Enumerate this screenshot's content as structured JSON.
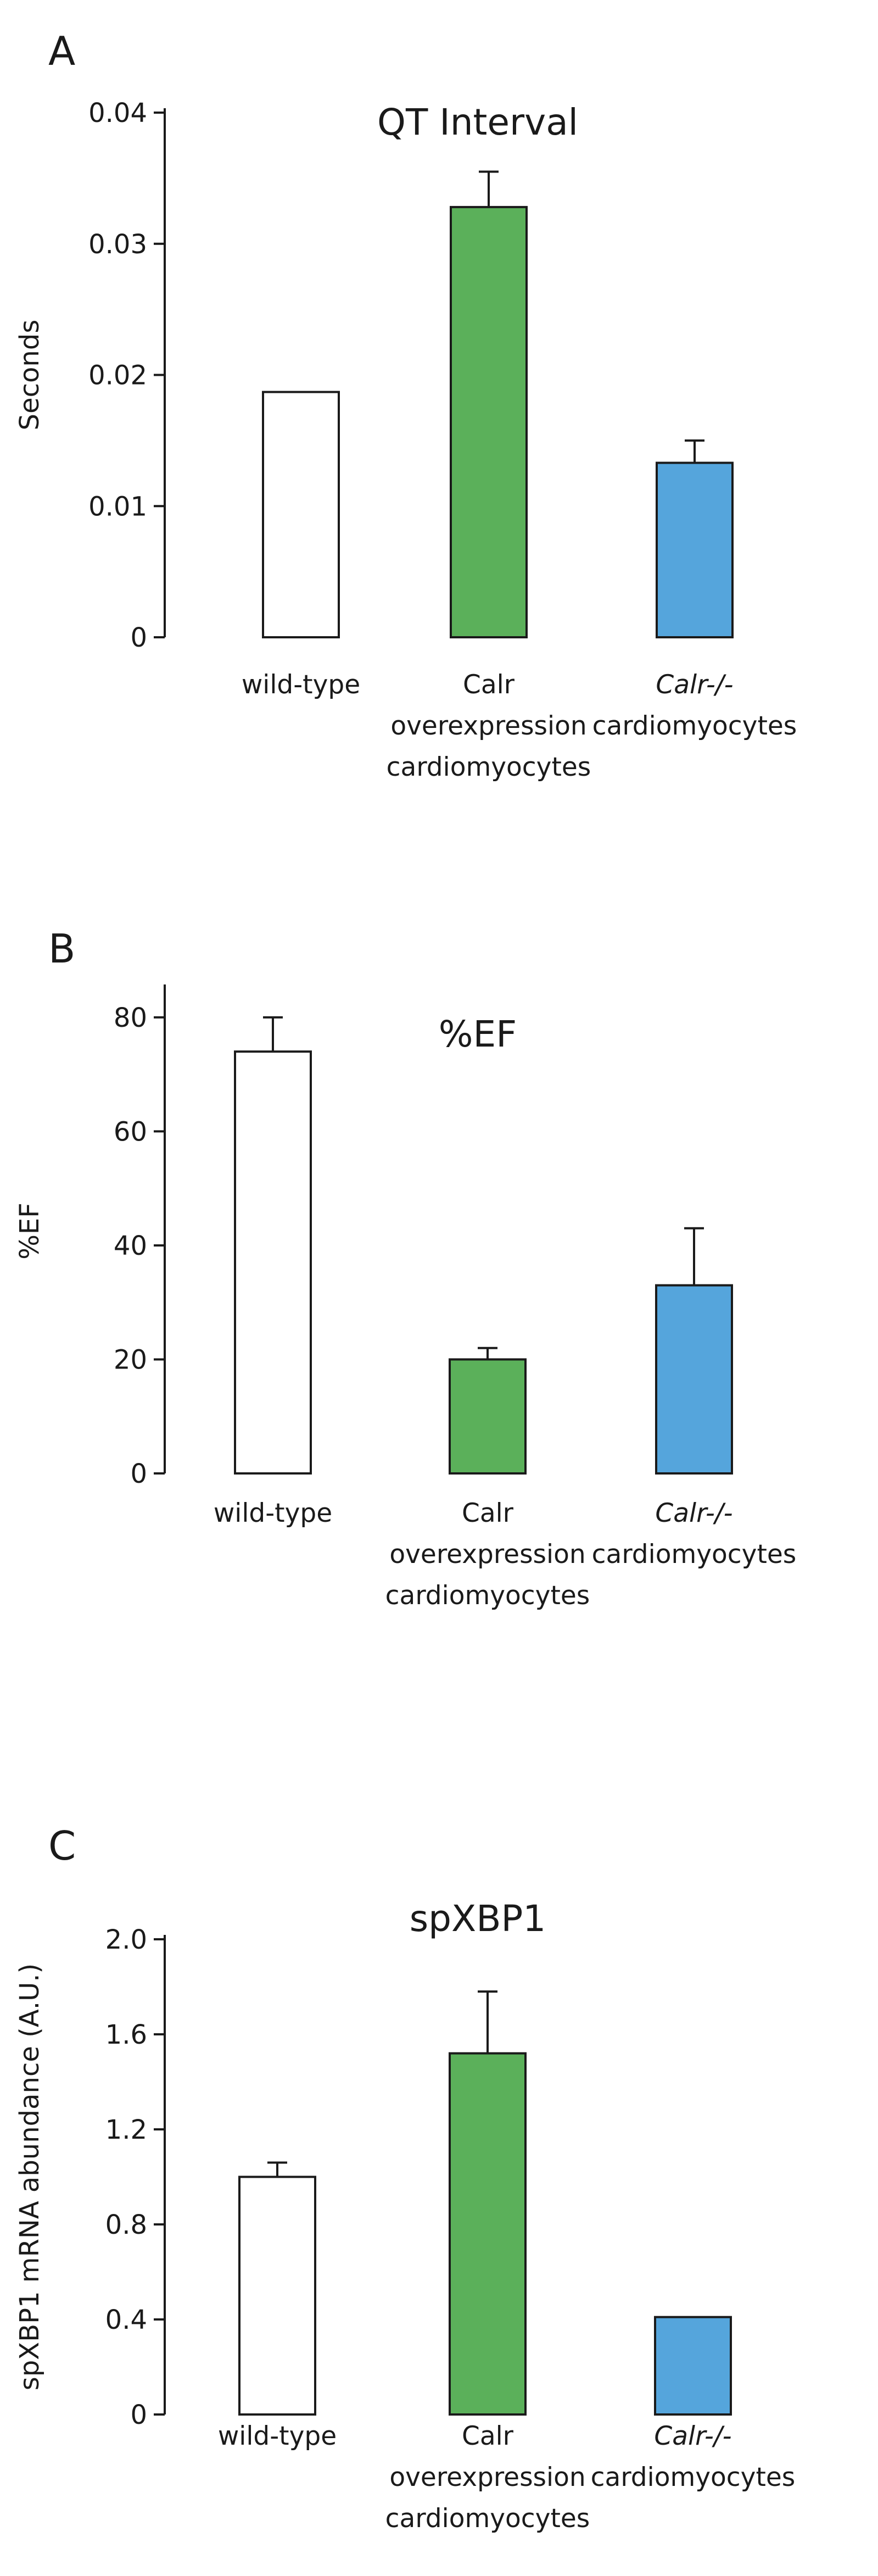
{
  "colors": {
    "axis": "#1a1a1a",
    "wild_type": "#ffffff",
    "overexpression": "#5bb05a",
    "knockout": "#55a5dc"
  },
  "chart_data": [
    {
      "panel": "A",
      "type": "bar",
      "title": "QT Interval",
      "xlabel": "",
      "ylabel": "Seconds",
      "ylim": [
        0,
        0.04
      ],
      "yticks": [
        "0",
        "0.01",
        "0.02",
        "0.03",
        "0.04"
      ],
      "categories": [
        {
          "lines": [
            "wild-type"
          ],
          "italic_first": false
        },
        {
          "lines": [
            "Calr",
            "overexpression",
            "cardiomyocytes"
          ],
          "italic_first": false
        },
        {
          "lines": [
            "Calr-/-",
            "cardiomyocytes"
          ],
          "italic_first": true
        }
      ],
      "values": [
        0.0187,
        0.0328,
        0.0133
      ],
      "errors": [
        null,
        0.0027,
        0.0017
      ],
      "bar_colors": [
        "#ffffff",
        "#5bb05a",
        "#55a5dc"
      ]
    },
    {
      "panel": "B",
      "type": "bar",
      "title": "%EF",
      "xlabel": "",
      "ylabel": "%EF",
      "ylim": [
        0,
        85
      ],
      "yticks": [
        "0",
        "20",
        "40",
        "60",
        "80"
      ],
      "categories": [
        {
          "lines": [
            "wild-type"
          ],
          "italic_first": false
        },
        {
          "lines": [
            "Calr",
            "overexpression",
            "cardiomyocytes"
          ],
          "italic_first": false
        },
        {
          "lines": [
            "Calr-/-",
            "cardiomyocytes"
          ],
          "italic_first": true
        }
      ],
      "values": [
        74,
        20,
        33
      ],
      "errors": [
        6,
        2,
        10
      ],
      "bar_colors": [
        "#ffffff",
        "#5bb05a",
        "#55a5dc"
      ]
    },
    {
      "panel": "C",
      "type": "bar",
      "title": "spXBP1",
      "xlabel": "",
      "ylabel": "spXBP1 mRNA abundance (A.U.)",
      "ylim": [
        0,
        2.0
      ],
      "yticks": [
        "0",
        "0.4",
        "0.8",
        "1.2",
        "1.6",
        "2.0"
      ],
      "categories": [
        {
          "lines": [
            "wild-type"
          ],
          "italic_first": false
        },
        {
          "lines": [
            "Calr",
            "overexpression",
            "cardiomyocytes"
          ],
          "italic_first": false
        },
        {
          "lines": [
            "Calr-/-",
            "cardiomyocytes"
          ],
          "italic_first": true
        }
      ],
      "values": [
        1.0,
        1.52,
        0.41
      ],
      "errors": [
        0.06,
        0.26,
        null
      ],
      "bar_colors": [
        "#ffffff",
        "#5bb05a",
        "#55a5dc"
      ]
    }
  ]
}
